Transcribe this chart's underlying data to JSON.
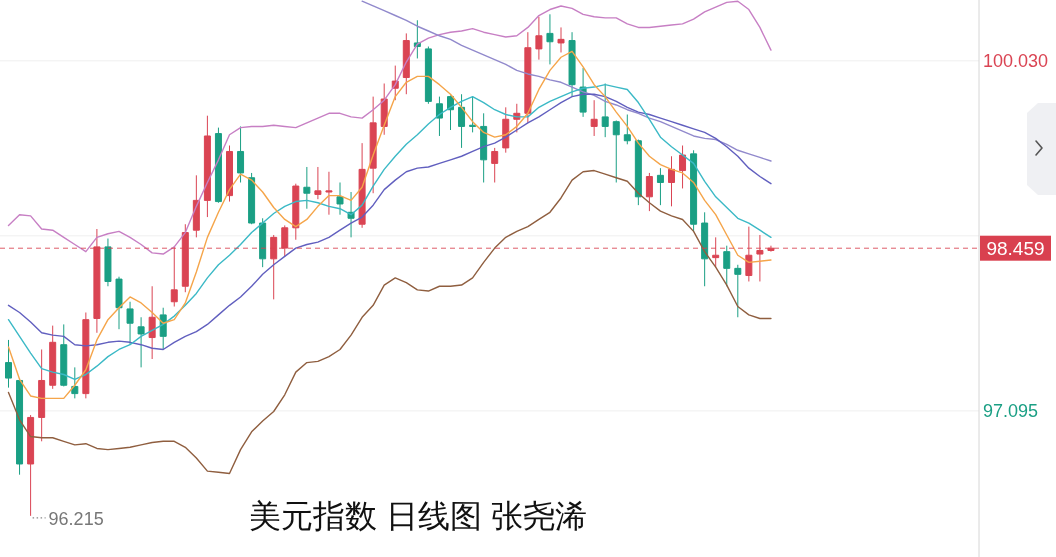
{
  "chart_data": {
    "type": "candlestick",
    "title": "美元指数 日线图 张尧浠",
    "categories": [
      null,
      null,
      null,
      null,
      null,
      null,
      null,
      null,
      null,
      null,
      null,
      null,
      null,
      null,
      null,
      null,
      null,
      null,
      null,
      null,
      null,
      null,
      null,
      null,
      null,
      null,
      null,
      null,
      null,
      null,
      null,
      null,
      null,
      null,
      null,
      null,
      null,
      null,
      null,
      null,
      null,
      null,
      null,
      null,
      null,
      null,
      null,
      null,
      null,
      null,
      null,
      null,
      null,
      null,
      null,
      null,
      null,
      null,
      null,
      null,
      null,
      null,
      null,
      null,
      null,
      null,
      null,
      null,
      null,
      null
    ],
    "ohlc": [
      [
        97.5,
        97.69,
        97.29,
        97.37
      ],
      [
        97.35,
        97.37,
        96.56,
        96.65
      ],
      [
        96.65,
        97.06,
        96.215,
        97.04
      ],
      [
        97.04,
        97.61,
        96.84,
        97.35
      ],
      [
        97.31,
        97.81,
        97.28,
        97.67
      ],
      [
        97.65,
        97.82,
        97.3,
        97.31
      ],
      [
        97.3,
        97.46,
        97.2,
        97.24
      ],
      [
        97.24,
        97.92,
        97.2,
        97.86
      ],
      [
        97.87,
        98.62,
        97.75,
        98.47
      ],
      [
        98.47,
        98.54,
        98.14,
        98.18
      ],
      [
        98.2,
        98.22,
        97.78,
        97.96
      ],
      [
        97.95,
        98.01,
        97.65,
        97.83
      ],
      [
        97.8,
        97.88,
        97.46,
        97.74
      ],
      [
        97.71,
        98.14,
        97.53,
        97.88
      ],
      [
        97.9,
        97.96,
        97.61,
        97.72
      ],
      [
        98.01,
        98.47,
        97.97,
        98.11
      ],
      [
        98.14,
        98.66,
        98.09,
        98.59
      ],
      [
        98.61,
        99.07,
        98.55,
        98.86
      ],
      [
        98.86,
        99.57,
        98.72,
        99.4
      ],
      [
        99.42,
        99.47,
        98.84,
        98.85
      ],
      [
        98.9,
        99.32,
        98.85,
        99.27
      ],
      [
        99.27,
        99.48,
        99.01,
        99.09
      ],
      [
        99.05,
        99.09,
        98.66,
        98.67
      ],
      [
        98.67,
        98.71,
        98.3,
        98.37
      ],
      [
        98.37,
        98.57,
        98.03,
        98.55
      ],
      [
        98.46,
        98.65,
        98.39,
        98.63
      ],
      [
        98.63,
        99.0,
        98.53,
        98.98
      ],
      [
        98.97,
        99.14,
        98.79,
        98.92
      ],
      [
        98.91,
        99.14,
        98.87,
        98.94
      ],
      [
        98.93,
        99.1,
        98.74,
        98.94
      ],
      [
        98.89,
        99.01,
        98.74,
        98.83
      ],
      [
        98.76,
        98.93,
        98.55,
        98.71
      ],
      [
        98.66,
        99.34,
        98.63,
        99.12
      ],
      [
        99.13,
        99.73,
        98.92,
        99.51
      ],
      [
        99.48,
        99.84,
        99.41,
        99.71
      ],
      [
        99.8,
        99.99,
        99.7,
        99.86
      ],
      [
        99.89,
        100.26,
        99.75,
        100.2
      ],
      [
        100.18,
        100.37,
        100.05,
        100.15
      ],
      [
        100.13,
        100.15,
        99.67,
        99.69
      ],
      [
        99.67,
        99.73,
        99.4,
        99.55
      ],
      [
        99.73,
        99.74,
        99.45,
        99.62
      ],
      [
        99.64,
        99.75,
        99.3,
        99.48
      ],
      [
        99.49,
        99.73,
        99.43,
        99.48
      ],
      [
        99.48,
        99.59,
        99.01,
        99.2
      ],
      [
        99.17,
        99.3,
        99.01,
        99.27
      ],
      [
        99.3,
        99.64,
        99.26,
        99.54
      ],
      [
        99.54,
        99.67,
        99.43,
        99.59
      ],
      [
        99.59,
        100.27,
        99.51,
        100.14
      ],
      [
        100.13,
        100.4,
        100.04,
        100.24
      ],
      [
        100.26,
        100.42,
        100.0,
        100.19
      ],
      [
        100.18,
        100.31,
        100.1,
        100.21
      ],
      [
        100.2,
        100.27,
        99.73,
        99.83
      ],
      [
        99.81,
        99.97,
        99.56,
        99.6
      ],
      [
        99.48,
        99.7,
        99.4,
        99.54
      ],
      [
        99.56,
        99.84,
        99.39,
        99.48
      ],
      [
        99.52,
        99.53,
        99.01,
        99.41
      ],
      [
        99.41,
        99.58,
        99.33,
        99.36
      ],
      [
        99.36,
        99.37,
        98.82,
        98.89
      ],
      [
        98.89,
        99.09,
        98.77,
        99.06
      ],
      [
        99.07,
        99.13,
        98.82,
        99.01
      ],
      [
        99.01,
        99.23,
        98.81,
        99.12
      ],
      [
        99.11,
        99.32,
        98.96,
        99.24
      ],
      [
        99.25,
        99.28,
        98.6,
        98.66
      ],
      [
        98.67,
        98.76,
        98.14,
        98.37
      ],
      [
        98.38,
        98.55,
        98.3,
        98.4
      ],
      [
        98.43,
        98.48,
        98.14,
        98.29
      ],
      [
        98.29,
        98.32,
        97.88,
        98.24
      ],
      [
        98.23,
        98.64,
        98.18,
        98.4
      ],
      [
        98.41,
        98.57,
        98.18,
        98.44
      ],
      [
        98.44,
        98.48,
        98.43,
        98.459
      ]
    ],
    "colors": [
      "#1a9f84",
      "#1a9f84",
      "#da4453",
      "#da4453",
      "#da4453",
      "#1a9f84",
      "#1a9f84",
      "#da4453",
      "#da4453",
      "#1a9f84",
      "#1a9f84",
      "#1a9f84",
      "#1a9f84",
      "#da4453",
      "#1a9f84",
      "#da4453",
      "#da4453",
      "#da4453",
      "#da4453",
      "#1a9f84",
      "#da4453",
      "#1a9f84",
      "#1a9f84",
      "#1a9f84",
      "#da4453",
      "#da4453",
      "#da4453",
      "#1a9f84",
      "#da4453",
      "#da4453",
      "#1a9f84",
      "#1a9f84",
      "#da4453",
      "#da4453",
      "#da4453",
      "#da4453",
      "#da4453",
      "#1a9f84",
      "#1a9f84",
      "#1a9f84",
      "#1a9f84",
      "#1a9f84",
      "#1a9f84",
      "#1a9f84",
      "#da4453",
      "#da4453",
      "#da4453",
      "#da4453",
      "#da4453",
      "#1a9f84",
      "#da4453",
      "#1a9f84",
      "#1a9f84",
      "#da4453",
      "#1a9f84",
      "#1a9f84",
      "#1a9f84",
      "#1a9f84",
      "#da4453",
      "#1a9f84",
      "#da4453",
      "#da4453",
      "#1a9f84",
      "#1a9f84",
      "#da4453",
      "#1a9f84",
      "#1a9f84",
      "#da4453",
      "#da4453",
      "#da4453"
    ],
    "series": [
      {
        "type": "line",
        "color": "#c77fc4",
        "values": [
          98.65,
          98.74,
          98.73,
          98.62,
          98.61,
          98.55,
          98.49,
          98.43,
          98.55,
          98.58,
          98.6,
          98.55,
          98.49,
          98.42,
          98.41,
          98.47,
          98.59,
          98.81,
          99.01,
          99.2,
          99.41,
          99.47,
          99.48,
          99.48,
          99.49,
          99.48,
          99.47,
          99.51,
          99.55,
          99.59,
          99.59,
          99.56,
          99.55,
          99.62,
          99.7,
          99.83,
          100.02,
          100.17,
          100.22,
          100.25,
          100.27,
          100.28,
          100.3,
          100.27,
          100.25,
          100.23,
          100.24,
          100.31,
          100.41,
          100.46,
          100.49,
          100.47,
          100.42,
          100.4,
          100.39,
          100.39,
          100.34,
          100.31,
          100.31,
          100.32,
          100.33,
          100.34,
          100.38,
          100.44,
          100.48,
          100.52,
          100.53,
          100.46,
          100.31,
          100.12
        ]
      },
      {
        "type": "line",
        "color": "#8f5e3f",
        "values": [
          97.25,
          97.02,
          96.88,
          96.87,
          96.87,
          96.84,
          96.81,
          96.82,
          96.78,
          96.77,
          96.78,
          96.79,
          96.81,
          96.83,
          96.84,
          96.84,
          96.79,
          96.7,
          96.59,
          96.58,
          96.57,
          96.77,
          96.92,
          97.01,
          97.09,
          97.23,
          97.42,
          97.5,
          97.51,
          97.55,
          97.61,
          97.73,
          97.88,
          97.98,
          98.15,
          98.21,
          98.17,
          98.11,
          98.1,
          98.14,
          98.14,
          98.15,
          98.21,
          98.34,
          98.46,
          98.55,
          98.6,
          98.64,
          98.7,
          98.76,
          98.88,
          99.03,
          99.1,
          99.11,
          99.08,
          99.05,
          99.02,
          98.92,
          98.84,
          98.77,
          98.73,
          98.7,
          98.6,
          98.43,
          98.3,
          98.15,
          97.97,
          97.9,
          97.87,
          97.87
        ]
      },
      {
        "type": "line",
        "color": "#9189cc",
        "values": [
          null,
          null,
          null,
          null,
          null,
          null,
          null,
          null,
          null,
          null,
          null,
          null,
          null,
          null,
          null,
          null,
          null,
          null,
          null,
          null,
          null,
          null,
          null,
          null,
          null,
          null,
          null,
          null,
          null,
          null,
          null,
          null,
          100.53,
          100.49,
          100.45,
          100.41,
          100.37,
          100.32,
          100.28,
          100.24,
          100.21,
          100.16,
          100.12,
          100.08,
          100.04,
          100.0,
          99.95,
          99.92,
          99.9,
          99.87,
          99.85,
          99.81,
          99.77,
          99.74,
          99.69,
          99.66,
          99.62,
          99.59,
          99.55,
          99.52,
          99.48,
          99.44,
          99.4,
          99.38,
          99.37,
          99.33,
          99.28,
          99.25,
          99.22,
          99.19
        ]
      },
      {
        "type": "line",
        "color": "#615fbf",
        "values": [
          97.98,
          97.92,
          97.84,
          97.75,
          97.73,
          97.72,
          97.65,
          97.64,
          97.65,
          97.67,
          97.68,
          97.67,
          97.65,
          97.62,
          97.61,
          97.67,
          97.72,
          97.76,
          97.82,
          97.9,
          97.98,
          98.05,
          98.14,
          98.24,
          98.32,
          98.39,
          98.46,
          98.49,
          98.51,
          98.55,
          98.61,
          98.67,
          98.72,
          98.82,
          98.95,
          99.03,
          99.1,
          99.13,
          99.14,
          99.17,
          99.2,
          99.23,
          99.27,
          99.31,
          99.34,
          99.39,
          99.45,
          99.51,
          99.56,
          99.62,
          99.68,
          99.73,
          99.75,
          99.75,
          99.73,
          99.69,
          99.64,
          99.6,
          99.58,
          99.55,
          99.52,
          99.49,
          99.46,
          99.43,
          99.38,
          99.31,
          99.23,
          99.13,
          99.06,
          99.0
        ]
      },
      {
        "type": "line",
        "color": "#3bb9c6",
        "values": [
          97.86,
          97.72,
          97.58,
          97.45,
          97.42,
          97.4,
          97.36,
          97.4,
          97.47,
          97.55,
          97.61,
          97.65,
          97.72,
          97.77,
          97.82,
          97.89,
          97.98,
          98.08,
          98.21,
          98.32,
          98.4,
          98.49,
          98.59,
          98.67,
          98.75,
          98.81,
          98.85,
          98.86,
          98.84,
          98.81,
          98.79,
          98.74,
          98.82,
          98.98,
          99.12,
          99.23,
          99.33,
          99.41,
          99.5,
          99.58,
          99.64,
          99.69,
          99.73,
          99.68,
          99.62,
          99.58,
          99.56,
          99.56,
          99.64,
          99.69,
          99.73,
          99.77,
          99.8,
          99.81,
          99.83,
          99.81,
          99.79,
          99.68,
          99.54,
          99.39,
          99.31,
          99.24,
          99.17,
          99.02,
          98.89,
          98.8,
          98.71,
          98.67,
          98.61,
          98.55
        ]
      },
      {
        "type": "line",
        "color": "#f5a54a",
        "values": [
          97.63,
          97.36,
          97.22,
          97.2,
          97.2,
          97.2,
          97.31,
          97.44,
          97.69,
          97.86,
          97.96,
          98.05,
          98.0,
          97.92,
          97.83,
          97.86,
          98.0,
          98.26,
          98.55,
          98.76,
          98.95,
          99.08,
          99.03,
          98.93,
          98.8,
          98.7,
          98.64,
          98.7,
          98.81,
          98.9,
          98.9,
          98.86,
          98.97,
          99.24,
          99.49,
          99.73,
          99.85,
          99.9,
          99.9,
          99.83,
          99.75,
          99.64,
          99.52,
          99.43,
          99.39,
          99.41,
          99.48,
          99.59,
          99.79,
          99.95,
          100.06,
          100.11,
          99.98,
          99.83,
          99.73,
          99.6,
          99.48,
          99.34,
          99.23,
          99.16,
          99.12,
          99.09,
          99.01,
          98.86,
          98.74,
          98.57,
          98.4,
          98.34,
          98.35,
          98.36
        ]
      }
    ],
    "ylim": [
      95.87,
      100.54
    ],
    "yticks": [
      {
        "value": 100.03,
        "label": "100.030"
      },
      {
        "value": 98.563,
        "label": null
      },
      {
        "value": 97.095,
        "label": "97.095"
      }
    ],
    "grid": "y",
    "tick_labels": "y",
    "ref_lines": [
      {
        "axis": "y",
        "value": 98.459,
        "label": "98.459",
        "color": "#d9404f",
        "line_style": "dashed"
      }
    ],
    "annotations": [
      "96.215"
    ]
  }
}
